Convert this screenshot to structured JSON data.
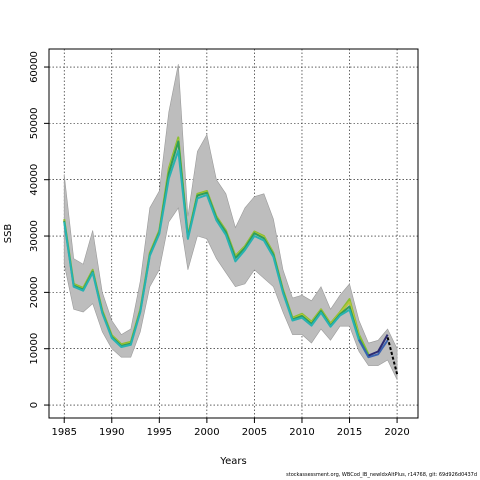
{
  "chart_data": {
    "type": "line",
    "title": "",
    "xlabel": "Years",
    "ylabel": "SSB",
    "xlim": [
      1983.4,
      2022.2
    ],
    "ylim": [
      -2300,
      63200
    ],
    "x_ticks": [
      1985,
      1990,
      1995,
      2000,
      2005,
      2010,
      2015,
      2020
    ],
    "y_ticks": [
      0,
      10000,
      20000,
      30000,
      40000,
      50000,
      60000
    ],
    "grid": true,
    "legend": "none",
    "confidence_band": {
      "x": [
        1985,
        1986,
        1987,
        1988,
        1989,
        1990,
        1991,
        1992,
        1993,
        1994,
        1995,
        1996,
        1997,
        1998,
        1999,
        2000,
        2001,
        2002,
        2003,
        2004,
        2005,
        2006,
        2007,
        2008,
        2009,
        2010,
        2011,
        2012,
        2013,
        2014,
        2015,
        2016,
        2017,
        2018,
        2019,
        2020
      ],
      "upper": [
        41000,
        26000,
        25000,
        31000,
        20000,
        15000,
        12500,
        13500,
        22000,
        35000,
        38000,
        52000,
        60500,
        33500,
        45000,
        48000,
        40000,
        37500,
        31500,
        35000,
        37000,
        37500,
        33000,
        24000,
        19000,
        19500,
        18500,
        21000,
        17000,
        19500,
        21500,
        15000,
        11000,
        11500,
        13500,
        10000
      ],
      "lower": [
        25000,
        17000,
        16500,
        18000,
        13000,
        10000,
        8500,
        8500,
        13000,
        21000,
        24000,
        32500,
        35000,
        24000,
        30000,
        29500,
        26000,
        23500,
        21000,
        21500,
        24000,
        22500,
        21000,
        16500,
        12500,
        12500,
        11000,
        13500,
        11500,
        14000,
        14000,
        9500,
        7000,
        7000,
        8000,
        4500
      ]
    },
    "series": [
      {
        "color": "#8abf2f",
        "x": [
          1985,
          1986,
          1987,
          1988,
          1989,
          1990,
          1991,
          1992,
          1993,
          1994,
          1995,
          1996,
          1997,
          1998,
          1999,
          2000,
          2001,
          2002,
          2003,
          2004,
          2005,
          2006,
          2007,
          2008,
          2009,
          2010,
          2011,
          2012,
          2013,
          2014,
          2015,
          2016,
          2017
        ],
        "values": [
          33000,
          21500,
          20800,
          24000,
          16800,
          12400,
          10800,
          11200,
          17000,
          27000,
          31000,
          42000,
          47500,
          30000,
          37500,
          38000,
          33500,
          31000,
          26500,
          28200,
          30800,
          30000,
          27000,
          20500,
          15500,
          16200,
          14800,
          17000,
          14500,
          16500,
          18800,
          12500,
          9000
        ]
      },
      {
        "color": "#b8c43a",
        "x": [
          1985,
          1986,
          1987,
          1988,
          1989,
          1990,
          1991,
          1992,
          1993,
          1994,
          1995,
          1996,
          1997,
          1998,
          1999,
          2000,
          2001,
          2002,
          2003,
          2004,
          2005,
          2006,
          2007,
          2008,
          2009,
          2010,
          2011,
          2012,
          2013,
          2014,
          2015,
          2016
        ],
        "values": [
          32800,
          21300,
          20600,
          23800,
          16600,
          12200,
          10600,
          11000,
          16800,
          26800,
          30800,
          41500,
          47000,
          29800,
          37300,
          37800,
          33300,
          30800,
          26300,
          28000,
          30600,
          29800,
          26800,
          20300,
          15300,
          16000,
          14600,
          16800,
          14300,
          16300,
          18300,
          12200
        ]
      },
      {
        "color": "#2e9e5a",
        "x": [
          1985,
          1986,
          1987,
          1988,
          1989,
          1990,
          1991,
          1992,
          1993,
          1994,
          1995,
          1996,
          1997,
          1998,
          1999,
          2000,
          2001,
          2002,
          2003,
          2004,
          2005,
          2006,
          2007,
          2008,
          2009,
          2010,
          2011,
          2012,
          2013,
          2014,
          2015,
          2016,
          2017
        ],
        "values": [
          32700,
          21200,
          20500,
          23700,
          16500,
          12100,
          10500,
          10900,
          16700,
          26700,
          30700,
          41200,
          46800,
          29700,
          37200,
          37700,
          33200,
          30700,
          26100,
          27900,
          30500,
          29600,
          26700,
          20200,
          15200,
          15800,
          14400,
          16700,
          14100,
          16100,
          17500,
          11800,
          8700
        ]
      },
      {
        "color": "#27b2b2",
        "x": [
          1985,
          1986,
          1987,
          1988,
          1989,
          1990,
          1991,
          1992,
          1993,
          1994,
          1995,
          1996,
          1997,
          1998,
          1999,
          2000,
          2001,
          2002,
          2003,
          2004,
          2005,
          2006,
          2007,
          2008,
          2009,
          2010,
          2011,
          2012,
          2013,
          2014,
          2015,
          2016,
          2017
        ],
        "values": [
          32500,
          21000,
          20300,
          23500,
          16300,
          11900,
          10300,
          10700,
          16500,
          26500,
          30400,
          40200,
          45200,
          29500,
          36700,
          37300,
          32800,
          30200,
          25500,
          27500,
          30000,
          29200,
          26300,
          19900,
          15000,
          15500,
          14100,
          16400,
          13900,
          15900,
          16900,
          11500,
          8500
        ]
      },
      {
        "color": "#3a62b0",
        "x": [
          2016,
          2017,
          2018,
          2019
        ],
        "values": [
          11600,
          8500,
          9000,
          11500
        ]
      },
      {
        "color": "#2b2a72",
        "x": [
          2017,
          2018,
          2019
        ],
        "values": [
          8800,
          9500,
          12500
        ]
      },
      {
        "color": "#000000",
        "dashed": true,
        "x": [
          2019,
          2020
        ],
        "values": [
          12000,
          5500
        ]
      }
    ]
  },
  "footer": {
    "text": "stockassessment.org, WBCod_IB_newIdxAltPlus, r14768, git: 69d926d0437d"
  }
}
